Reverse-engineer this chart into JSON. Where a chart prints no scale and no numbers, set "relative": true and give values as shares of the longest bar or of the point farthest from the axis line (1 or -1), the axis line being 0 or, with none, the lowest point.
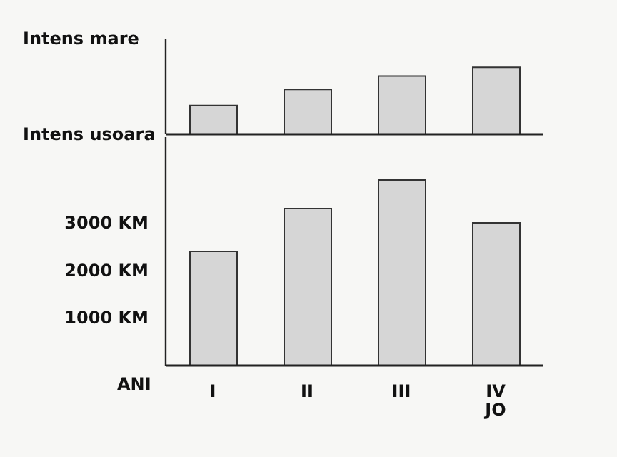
{
  "chart_data": [
    {
      "type": "bar",
      "categories": [
        null,
        null,
        null,
        null
      ],
      "values": [
        0.43,
        0.67,
        0.87,
        1
      ],
      "color": "#d6d6d6",
      "relative": true,
      "annotations": [
        "Intens mare",
        "Intens usoara"
      ]
    },
    {
      "type": "bar",
      "xlabel": "ANI",
      "categories": [
        "I",
        "II",
        "III",
        "IV\nJO"
      ],
      "values": [
        2400,
        3300,
        3900,
        3000
      ],
      "color": "#d6d6d6",
      "ylim": [
        0,
        4800
      ],
      "yticks": [
        {
          "value": 1000,
          "label": "1000 KM"
        },
        {
          "value": 2000,
          "label": "2000 KM"
        },
        {
          "value": 3000,
          "label": "3000 KM"
        }
      ]
    }
  ]
}
